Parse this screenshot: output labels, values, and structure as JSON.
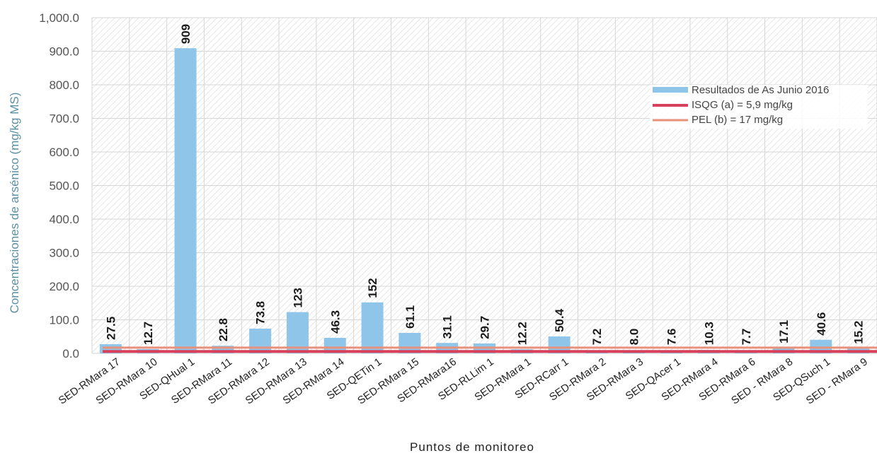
{
  "colors": {
    "bar": "#8ec5e8",
    "isqg": "#d8405c",
    "pel": "#e8907a",
    "grid": "#d6d6d6",
    "hatch": "#e6e6e6"
  },
  "chart_data": {
    "type": "bar",
    "title": "",
    "xlabel": "Puntos de monitoreo",
    "ylabel": "Concentraciones de arsénico (mg/kg MS)",
    "ylim": [
      0,
      1000
    ],
    "yticks": [
      "0.0",
      "100.0",
      "200.0",
      "300.0",
      "400.0",
      "500.0",
      "600.0",
      "700.0",
      "800.0",
      "900.0",
      "1,000.0"
    ],
    "grid": true,
    "legend_position": "right",
    "categories": [
      "SED-RMara 17",
      "SED-RMara 10",
      "SED-QHual 1",
      "SED-RMara 11",
      "SED-RMara 12",
      "SED-RMara 13",
      "SED-RMara 14",
      "SED-QETin 1",
      "SED-RMara 15",
      "SED-RMara16",
      "SED-RLLim 1",
      "SED-RMara 1",
      "SED-RCarr 1",
      "SED-RMara 2",
      "SED-RMara 3",
      "SED-QAcer 1",
      "SED-RMara 4",
      "SED-RMara 6",
      "SED - RMara 8",
      "SED-QSuch 1",
      "SED - RMara 9"
    ],
    "series": [
      {
        "name": "Resultados de As Junio 2016",
        "type": "bar",
        "values": [
          27.5,
          12.7,
          909,
          22.8,
          73.8,
          123,
          46.3,
          152,
          61.1,
          31.1,
          29.7,
          12.2,
          50.4,
          7.2,
          8.0,
          7.6,
          10.3,
          7.7,
          17.1,
          40.6,
          15.2
        ],
        "labels": [
          "27.5",
          "12.7",
          "909",
          "22.8",
          "73.8",
          "123",
          "46.3",
          "152",
          "61.1",
          "31.1",
          "29.7",
          "12.2",
          "50.4",
          "7.2",
          "8.0",
          "7.6",
          "10.3",
          "7.7",
          "17.1",
          "40.6",
          "15.2"
        ]
      },
      {
        "name": "ISQG (a) = 5,9 mg/kg",
        "type": "line",
        "value": 5.9
      },
      {
        "name": "PEL (b) = 17 mg/kg",
        "type": "line",
        "value": 17
      }
    ]
  }
}
